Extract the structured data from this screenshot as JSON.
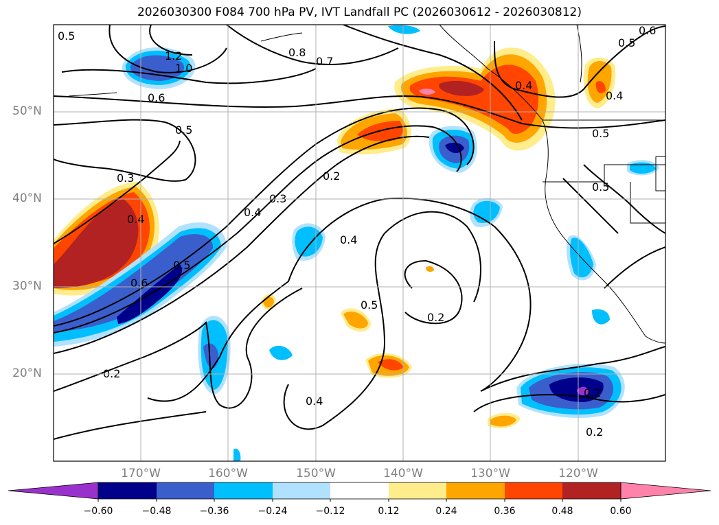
{
  "title": "2026030300 F084 700 hPa PV, IVT Landfall PC (2026030612 - 2026030812)",
  "latitude_labels": [
    "50°N",
    "40°N",
    "30°N",
    "20°N"
  ],
  "longitude_labels": [
    "170°W",
    "160°W",
    "150°W",
    "140°W",
    "130°W",
    "120°W"
  ],
  "contour_labels": [
    "0.5",
    "1.2",
    "1.0",
    "0.6",
    "0.8",
    "0.7",
    "0.5",
    "0.3",
    "0.4",
    "0.5",
    "0.6",
    "0.2",
    "0.4",
    "0.3",
    "0.2",
    "0.4",
    "0.5",
    "0.2",
    "0.4",
    "0.2",
    "0.5",
    "0.4",
    "0.5",
    "0.5",
    "0.4",
    "0.2",
    "0.6"
  ],
  "colorbar": {
    "tick_labels": [
      "−0.60",
      "−0.48",
      "−0.36",
      "−0.24",
      "−0.12",
      "0.12",
      "0.24",
      "0.36",
      "0.48",
      "0.60"
    ],
    "colors": [
      "#9932cc",
      "#00008b",
      "#3a5fcd",
      "#00bfff",
      "#b0e2ff",
      "#ffffff",
      "#ffec8b",
      "#ffa500",
      "#ff4500",
      "#b22222",
      "#ff82ab"
    ]
  },
  "chart_data": {
    "type": "map",
    "title": "2026030300 F084 700 hPa PV, IVT Landfall PC (2026030612 - 2026030812)",
    "field_contours": "700 hPa PV",
    "field_shaded": "IVT Landfall PC",
    "x_range_deg": [
      -180,
      -110
    ],
    "y_range_deg": [
      10,
      60
    ],
    "contour_levels": [
      0.2,
      0.3,
      0.4,
      0.5,
      0.6,
      0.7,
      0.8,
      1.0,
      1.2
    ],
    "shading_levels": [
      -0.6,
      -0.48,
      -0.36,
      -0.24,
      -0.12,
      0.12,
      0.24,
      0.36,
      0.48,
      0.6
    ]
  }
}
